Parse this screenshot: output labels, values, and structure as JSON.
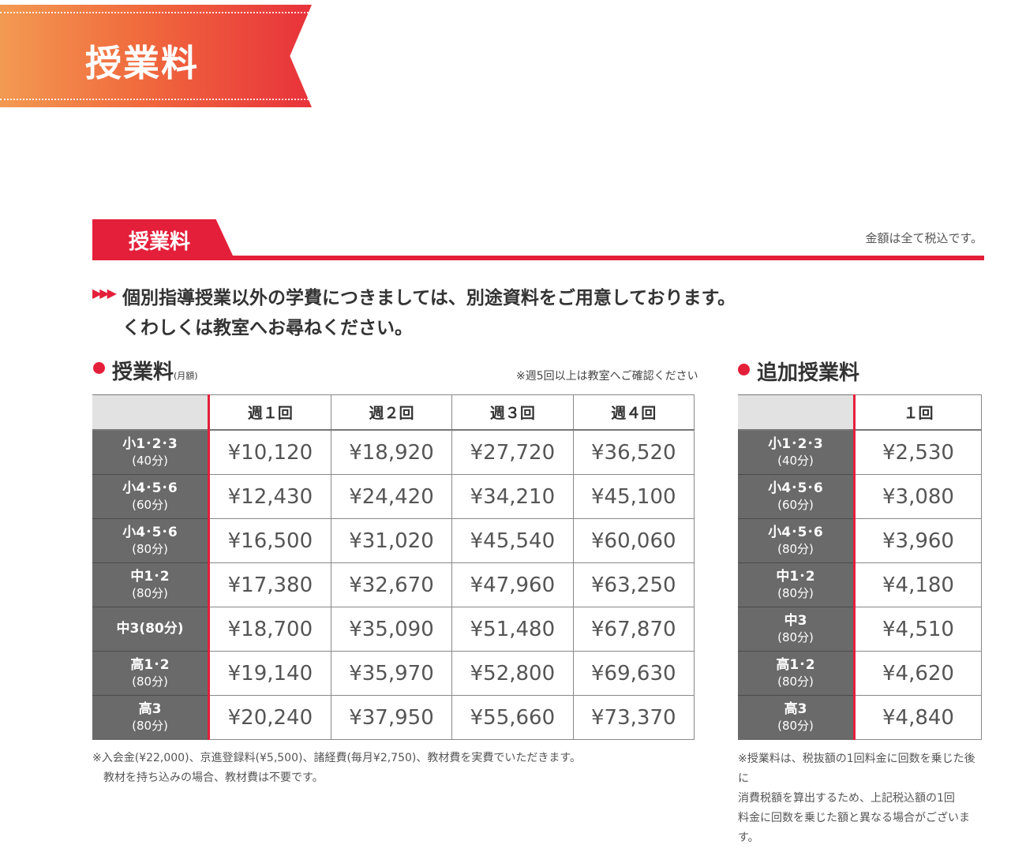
{
  "banner": {
    "title": "授業料"
  },
  "section": {
    "tab_label": "授業料",
    "tax_note": "金額は全て税込です。"
  },
  "intro": {
    "arrows": "▶▶▶",
    "line1": "個別指導授業以外の学費につきましては、別途資料をご用意しております。",
    "line2": "くわしくは教室へお尋ねください。"
  },
  "tuition": {
    "title": "授業料",
    "title_small": "(月額)",
    "note": "※週5回以上は教室へご確認ください",
    "columns": [
      "週１回",
      "週２回",
      "週３回",
      "週４回"
    ],
    "rows": [
      {
        "grade": "小1･2･3",
        "mins": "(40分)",
        "values": [
          "¥10,120",
          "¥18,920",
          "¥27,720",
          "¥36,520"
        ]
      },
      {
        "grade": "小4･5･6",
        "mins": "(60分)",
        "values": [
          "¥12,430",
          "¥24,420",
          "¥34,210",
          "¥45,100"
        ]
      },
      {
        "grade": "小4･5･6",
        "mins": "(80分)",
        "values": [
          "¥16,500",
          "¥31,020",
          "¥45,540",
          "¥60,060"
        ]
      },
      {
        "grade": "中1･2",
        "mins": "(80分)",
        "values": [
          "¥17,380",
          "¥32,670",
          "¥47,960",
          "¥63,250"
        ]
      },
      {
        "grade": "中3(80分)",
        "mins": "",
        "values": [
          "¥18,700",
          "¥35,090",
          "¥51,480",
          "¥67,870"
        ]
      },
      {
        "grade": "高1･2",
        "mins": "(80分)",
        "values": [
          "¥19,140",
          "¥35,970",
          "¥52,800",
          "¥69,630"
        ]
      },
      {
        "grade": "高3",
        "mins": "(80分)",
        "values": [
          "¥20,240",
          "¥37,950",
          "¥55,660",
          "¥73,370"
        ]
      }
    ],
    "footnote1": "※入会金(¥22,000)、京進登録料(¥5,500)、諸経費(毎月¥2,750)、教材費を実費でいただきます。",
    "footnote2": "教材を持ち込みの場合、教材費は不要です。"
  },
  "additional": {
    "title": "追加授業料",
    "column": "１回",
    "rows": [
      {
        "grade": "小1･2･3",
        "mins": "(40分)",
        "value": "¥2,530"
      },
      {
        "grade": "小4･5･6",
        "mins": "(60分)",
        "value": "¥3,080"
      },
      {
        "grade": "小4･5･6",
        "mins": "(80分)",
        "value": "¥3,960"
      },
      {
        "grade": "中1･2",
        "mins": "(80分)",
        "value": "¥4,180"
      },
      {
        "grade": "中3",
        "mins": "(80分)",
        "value": "¥4,510"
      },
      {
        "grade": "高1･2",
        "mins": "(80分)",
        "value": "¥4,620"
      },
      {
        "grade": "高3",
        "mins": "(80分)",
        "value": "¥4,840"
      }
    ],
    "footnote_lines": [
      "※授業料は、税抜額の1回料金に回数を乗じた後に",
      "消費税額を算出するため、上記税込額の1回",
      "料金に回数を乗じた額と異なる場合がございます。"
    ]
  },
  "colors": {
    "accent": "#e41f3a",
    "row_header": "#6a6a6a"
  }
}
